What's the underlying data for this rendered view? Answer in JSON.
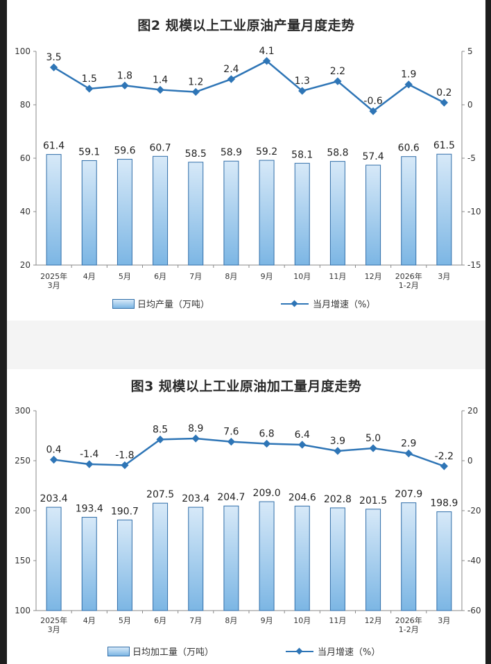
{
  "chart_data": [
    {
      "type": "bar",
      "title": "图2 规模以上工业原油产量月度走势",
      "categories": [
        "2025年\n3月",
        "4月",
        "5月",
        "6月",
        "7月",
        "8月",
        "9月",
        "10月",
        "11月",
        "12月",
        "2026年\n1-2月",
        "3月"
      ],
      "series": [
        {
          "name": "日均产量（万吨）",
          "type": "bar",
          "axis": "left",
          "values": [
            61.4,
            59.1,
            59.6,
            60.7,
            58.5,
            58.9,
            59.2,
            58.1,
            58.8,
            57.4,
            60.6,
            61.5
          ]
        },
        {
          "name": "当月增速（%）",
          "type": "line",
          "axis": "right",
          "values": [
            3.5,
            1.5,
            1.8,
            1.4,
            1.2,
            2.4,
            4.1,
            1.3,
            2.2,
            -0.6,
            1.9,
            0.2
          ]
        }
      ],
      "ylim_left": [
        20,
        100
      ],
      "yticks_left": [
        "20",
        "40",
        "60",
        "80",
        "100"
      ],
      "ylim_right": [
        -15,
        5
      ],
      "yticks_right": [
        "-15",
        "-10",
        "-5",
        "0",
        "5"
      ],
      "bar_labels": [
        "61.4",
        "59.1",
        "59.6",
        "60.7",
        "58.5",
        "58.9",
        "59.2",
        "58.1",
        "58.8",
        "57.4",
        "60.6",
        "61.5"
      ],
      "line_labels": [
        "3.5",
        "1.5",
        "1.8",
        "1.4",
        "1.2",
        "2.4",
        "4.1",
        "1.3",
        "2.2",
        "-0.6",
        "1.9",
        "0.2"
      ],
      "legend_placement": "bottom",
      "grid": false,
      "colors": {
        "bar_top": "#d7e9f8",
        "bar_bottom": "#7cb6e4",
        "bar_edge": "#2f6da8",
        "line": "#2e75b6"
      }
    },
    {
      "type": "bar",
      "title": "图3 规模以上工业原油加工量月度走势",
      "categories": [
        "2025年\n3月",
        "4月",
        "5月",
        "6月",
        "7月",
        "8月",
        "9月",
        "10月",
        "11月",
        "12月",
        "2026年\n1-2月",
        "3月"
      ],
      "series": [
        {
          "name": "日均加工量（万吨）",
          "type": "bar",
          "axis": "left",
          "values": [
            203.4,
            193.4,
            190.7,
            207.5,
            203.4,
            204.7,
            209.0,
            204.6,
            202.8,
            201.5,
            207.9,
            198.9
          ]
        },
        {
          "name": "当月增速（%）",
          "type": "line",
          "axis": "right",
          "values": [
            0.4,
            -1.4,
            -1.8,
            8.5,
            8.9,
            7.6,
            6.8,
            6.4,
            3.9,
            5.0,
            2.9,
            -2.2
          ]
        }
      ],
      "ylim_left": [
        100,
        300
      ],
      "yticks_left": [
        "100",
        "150",
        "200",
        "250",
        "300"
      ],
      "ylim_right": [
        -60,
        20
      ],
      "yticks_right": [
        "-60",
        "-40",
        "-20",
        "0",
        "20"
      ],
      "bar_labels": [
        "203.4",
        "193.4",
        "190.7",
        "207.5",
        "203.4",
        "204.7",
        "209.0",
        "204.6",
        "202.8",
        "201.5",
        "207.9",
        "198.9"
      ],
      "line_labels": [
        "0.4",
        "-1.4",
        "-1.8",
        "8.5",
        "8.9",
        "7.6",
        "6.8",
        "6.4",
        "3.9",
        "5.0",
        "2.9",
        "-2.2"
      ],
      "legend_placement": "bottom",
      "grid": false,
      "colors": {
        "bar_top": "#d7e9f8",
        "bar_bottom": "#7cb6e4",
        "bar_edge": "#2f6da8",
        "line": "#2e75b6"
      }
    }
  ]
}
